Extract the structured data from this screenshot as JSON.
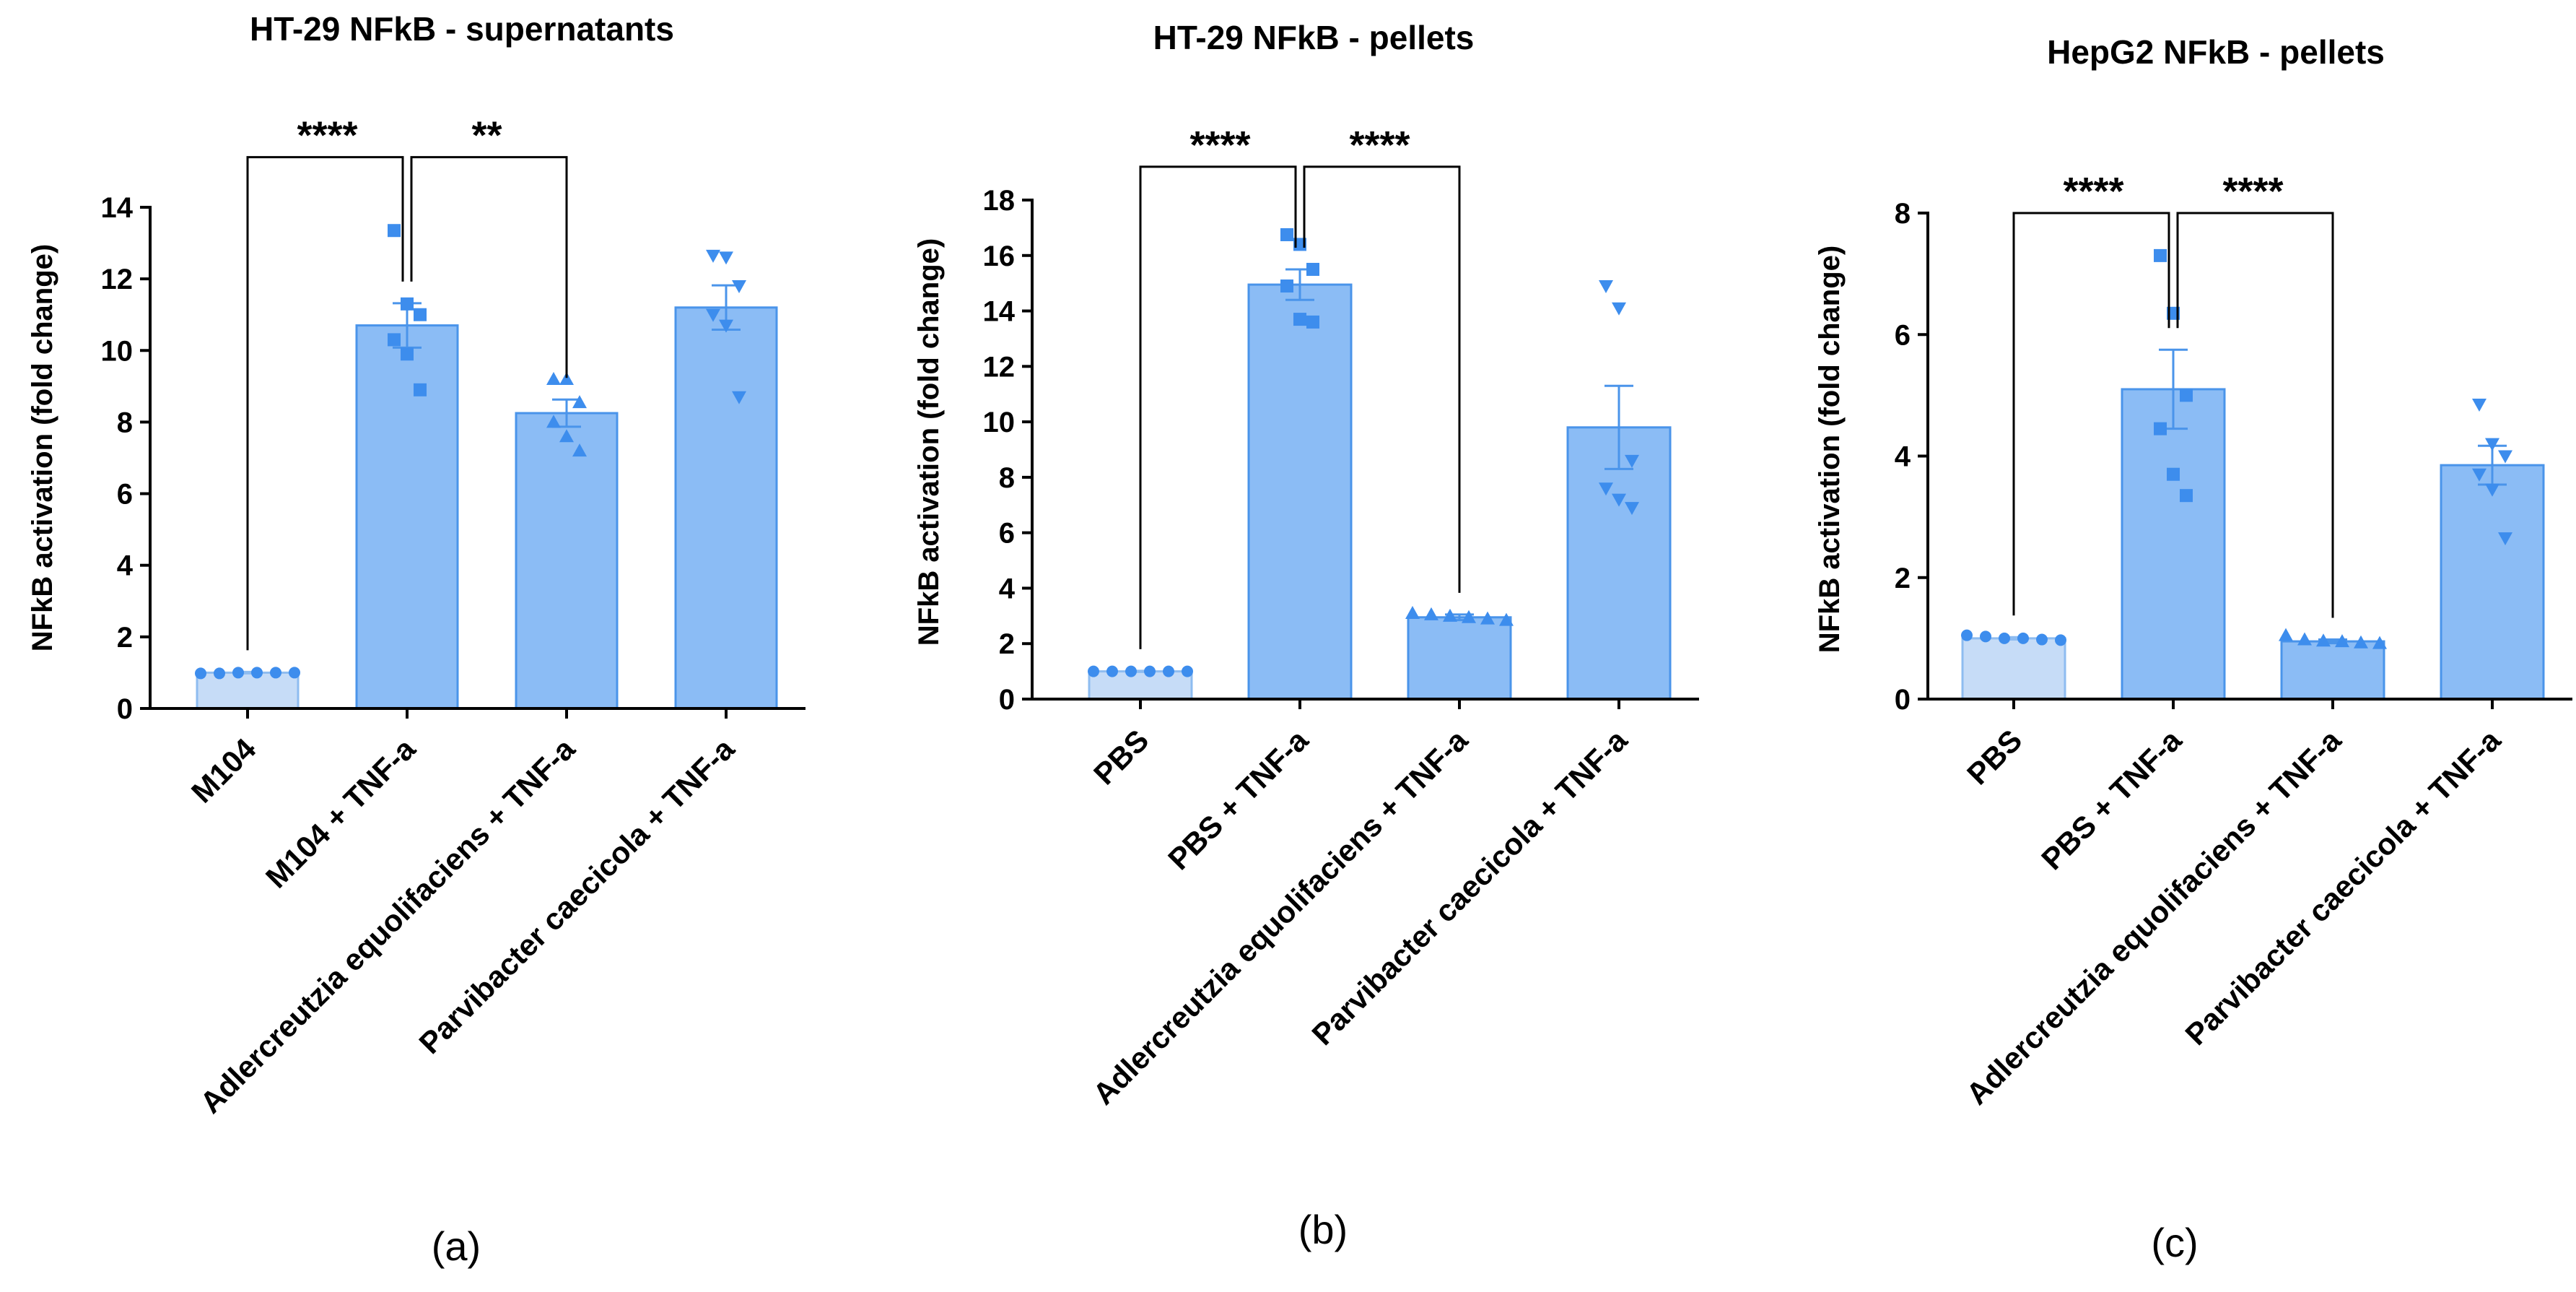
{
  "colors": {
    "bar_light_fill": "#c6dcf7",
    "bar_light_stroke": "#8ebcf0",
    "bar_fill": "#8bbcf5",
    "bar_stroke": "#4a94ea",
    "point": "#3d8ded",
    "axis": "#000000"
  },
  "chart_data": [
    {
      "type": "bar",
      "panel": "(a)",
      "title": "HT-29 NFkB - supernatants",
      "xlabel": "",
      "ylabel": "NFkB activation (fold change)",
      "ylim": [
        0,
        14
      ],
      "yticks": [
        0,
        2,
        4,
        6,
        8,
        10,
        12,
        14
      ],
      "categories": [
        "M104",
        "M104 + TNF-a",
        "Adlercreutzia equolifaciens + TNF-a",
        "Parvibacter caecicola + TNF-a"
      ],
      "values": [
        1.0,
        10.7,
        8.25,
        11.2
      ],
      "errors": [
        0.02,
        0.62,
        0.38,
        0.62
      ],
      "points": [
        [
          0.98,
          0.98,
          1.0,
          1.0,
          1.0,
          1.0
        ],
        [
          13.35,
          11.3,
          11.0,
          10.3,
          9.9,
          8.9
        ],
        [
          9.2,
          9.2,
          8.55,
          8.0,
          7.6,
          7.2
        ],
        [
          12.65,
          12.6,
          11.8,
          11.0,
          10.7,
          8.7
        ]
      ],
      "markers": [
        "circle",
        "square",
        "triangle",
        "triangle-down"
      ],
      "significance": [
        {
          "from": 0,
          "to": 1,
          "label": "****",
          "y": 15.4
        },
        {
          "from": 1,
          "to": 2,
          "label": "**",
          "y": 15.4
        }
      ]
    },
    {
      "type": "bar",
      "panel": "(b)",
      "title": "HT-29 NFkB - pellets",
      "xlabel": "",
      "ylabel": "NFkB activation (fold change)",
      "ylim": [
        0,
        18
      ],
      "yticks": [
        0,
        2,
        4,
        6,
        8,
        10,
        12,
        14,
        16,
        18
      ],
      "categories": [
        "PBS",
        "PBS + TNF-a",
        "Adlercreutzia equolifaciens + TNF-a",
        "Parvibacter caecicola + TNF-a"
      ],
      "values": [
        1.0,
        14.95,
        2.95,
        9.8
      ],
      "errors": [
        0.02,
        0.55,
        0.1,
        1.5
      ],
      "points": [
        [
          1.0,
          1.0,
          1.0,
          1.0,
          1.0,
          1.0
        ],
        [
          16.75,
          16.4,
          15.5,
          14.9,
          13.7,
          13.6
        ],
        [
          3.1,
          3.05,
          3.0,
          2.95,
          2.9,
          2.85
        ],
        [
          14.9,
          14.1,
          8.6,
          7.6,
          7.2,
          6.9
        ]
      ],
      "markers": [
        "circle",
        "square",
        "triangle",
        "triangle-down"
      ],
      "significance": [
        {
          "from": 0,
          "to": 1,
          "label": "****",
          "y": 19.2
        },
        {
          "from": 1,
          "to": 2,
          "label": "****",
          "y": 19.2
        }
      ]
    },
    {
      "type": "bar",
      "panel": "(c)",
      "title": "HepG2 NFkB - pellets",
      "xlabel": "",
      "ylabel": "NFkB activation (fold change)",
      "ylim": [
        0,
        8
      ],
      "yticks": [
        0,
        2,
        4,
        6,
        8
      ],
      "categories": [
        "PBS",
        "PBS + TNF-a",
        "Adlercreutzia equolifaciens + TNF-a",
        "Parvibacter caecicola + TNF-a"
      ],
      "values": [
        1.0,
        5.1,
        0.95,
        3.85
      ],
      "errors": [
        0.02,
        0.65,
        0.03,
        0.32
      ],
      "points": [
        [
          1.05,
          1.03,
          1.0,
          1.0,
          0.98,
          0.97
        ],
        [
          7.3,
          6.35,
          5.0,
          4.45,
          3.7,
          3.35
        ],
        [
          1.05,
          0.98,
          0.96,
          0.95,
          0.93,
          0.92
        ],
        [
          4.85,
          4.2,
          4.0,
          3.7,
          3.45,
          2.65
        ]
      ],
      "markers": [
        "circle",
        "square",
        "triangle",
        "triangle-down"
      ],
      "significance": [
        {
          "from": 0,
          "to": 1,
          "label": "****",
          "y": 8.0
        },
        {
          "from": 1,
          "to": 2,
          "label": "****",
          "y": 8.0
        }
      ]
    }
  ]
}
